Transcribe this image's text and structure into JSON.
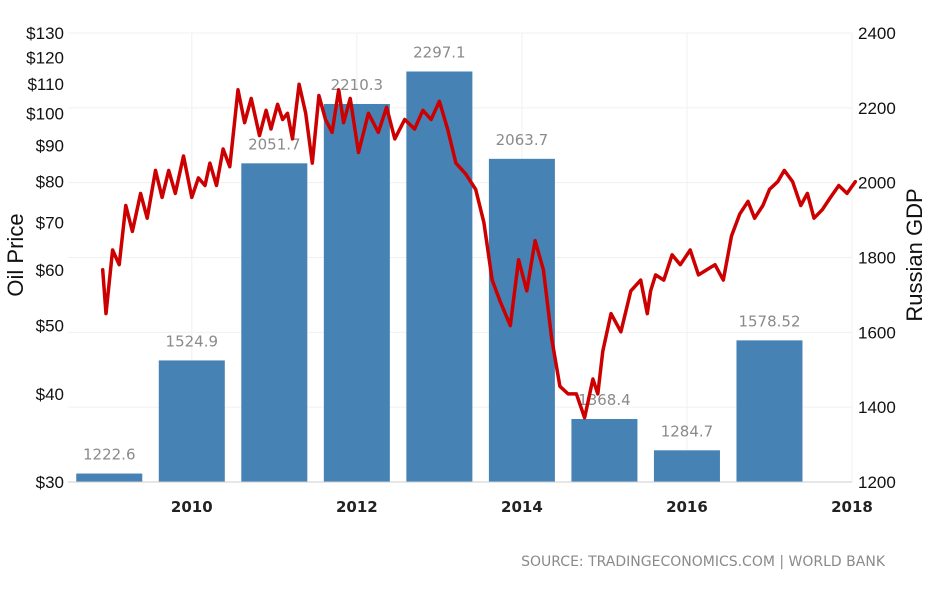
{
  "chart_data": {
    "type": "bar",
    "source": "SOURCE: TRADINGECONOMICS.COM | WORLD BANK",
    "left_axis": {
      "title": "Oil Price",
      "scale": "log",
      "range": [
        30,
        130
      ],
      "ticks": [
        30,
        40,
        50,
        60,
        70,
        80,
        90,
        100,
        110,
        120,
        130
      ],
      "tick_labels": [
        "$30",
        "$40",
        "$50",
        "$60",
        "$70",
        "$80",
        "$90",
        "$100",
        "$110",
        "$120",
        "$130"
      ]
    },
    "right_axis": {
      "title": "Russian GDP",
      "range": [
        1200,
        2400
      ],
      "ticks": [
        1200,
        1400,
        1600,
        1800,
        2000,
        2200,
        2400
      ]
    },
    "x_axis": {
      "range": [
        2008.5,
        2018
      ],
      "ticks": [
        2010,
        2012,
        2014,
        2016,
        2018
      ]
    },
    "grid": true,
    "series": [
      {
        "name": "Russian GDP",
        "type": "bar",
        "axis": "right",
        "color": "#4682b4",
        "x": [
          2009,
          2010,
          2011,
          2012,
          2013,
          2014,
          2015,
          2016,
          2017
        ],
        "values": [
          1222.6,
          1524.9,
          2051.7,
          2210.3,
          2297.1,
          2063.7,
          1368.4,
          1284.7,
          1578.52
        ],
        "labels": [
          "1222.6",
          "1524.9",
          "2051.7",
          "2210.3",
          "2297.1",
          "2063.7",
          "1368.4",
          "1284.7",
          "1578.52"
        ]
      },
      {
        "name": "Oil Price",
        "type": "line",
        "axis": "left",
        "color": "#cc0000",
        "x": [
          2008.92,
          2008.96,
          2009.04,
          2009.12,
          2009.2,
          2009.28,
          2009.38,
          2009.46,
          2009.56,
          2009.64,
          2009.72,
          2009.8,
          2009.9,
          2010.0,
          2010.08,
          2010.16,
          2010.22,
          2010.3,
          2010.38,
          2010.46,
          2010.56,
          2010.64,
          2010.72,
          2010.82,
          2010.9,
          2010.96,
          2011.04,
          2011.1,
          2011.16,
          2011.22,
          2011.3,
          2011.38,
          2011.46,
          2011.54,
          2011.62,
          2011.7,
          2011.78,
          2011.84,
          2011.92,
          2012.02,
          2012.14,
          2012.26,
          2012.36,
          2012.46,
          2012.58,
          2012.7,
          2012.8,
          2012.9,
          2013.0,
          2013.1,
          2013.2,
          2013.32,
          2013.44,
          2013.54,
          2013.64,
          2013.74,
          2013.86,
          2013.96,
          2014.06,
          2014.16,
          2014.26,
          2014.36,
          2014.46,
          2014.56,
          2014.66,
          2014.76,
          2014.86,
          2014.92,
          2014.98,
          2015.08,
          2015.2,
          2015.32,
          2015.44,
          2015.52,
          2015.56,
          2015.62,
          2015.72,
          2015.82,
          2015.92,
          2016.04,
          2016.14,
          2016.24,
          2016.34,
          2016.44,
          2016.54,
          2016.64,
          2016.74,
          2016.82,
          2016.92,
          2017.0,
          2017.1,
          2017.18,
          2017.28,
          2017.38,
          2017.46,
          2017.54,
          2017.64,
          2017.74,
          2017.84,
          2017.94,
          2018.04
        ],
        "values": [
          60,
          52,
          64,
          61,
          74,
          68,
          77,
          71,
          83,
          76,
          83,
          77,
          87,
          76,
          81,
          79,
          85,
          79,
          89,
          84,
          108,
          97,
          105,
          93,
          101,
          95,
          103,
          98,
          100,
          92,
          110,
          100,
          85,
          106,
          98,
          94,
          108,
          97,
          105,
          88,
          100,
          94,
          102,
          92,
          98,
          95,
          101,
          98,
          104,
          95,
          85,
          82,
          78,
          70,
          58,
          54,
          50,
          62,
          56,
          66,
          60,
          48,
          41,
          40,
          40,
          37,
          42,
          40,
          46,
          52,
          49,
          56,
          58,
          52,
          56,
          59,
          58,
          63,
          61,
          64,
          59,
          60,
          61,
          58,
          67,
          72,
          75,
          71,
          74,
          78,
          80,
          83,
          80,
          74,
          77,
          71,
          73,
          76,
          79,
          77,
          80
        ]
      }
    ]
  }
}
